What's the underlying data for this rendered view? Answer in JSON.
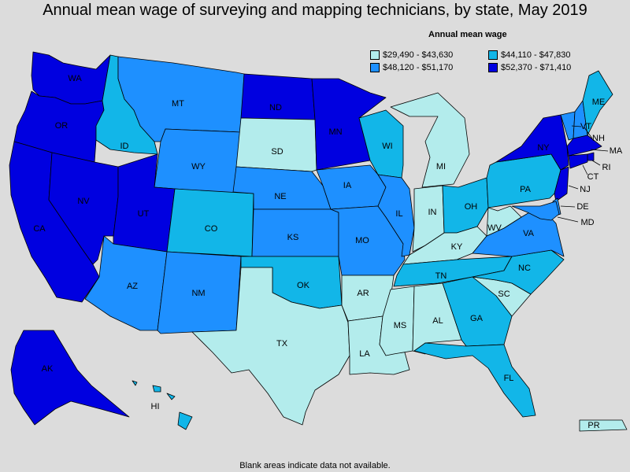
{
  "title": "Annual mean wage of surveying and mapping technicians, by state, May 2019",
  "legend": {
    "title": "Annual mean wage",
    "items": [
      {
        "label": "$29,490 - $43,630",
        "color": "#b3ecec"
      },
      {
        "label": "$44,110 - $47,830",
        "color": "#12b6e8"
      },
      {
        "label": "$48,120 - $51,170",
        "color": "#1e90ff"
      },
      {
        "label": "$52,370 - $71,410",
        "color": "#0000e0"
      }
    ]
  },
  "footnote": "Blank areas indicate data not available.",
  "states": [
    {
      "abbr": "WA",
      "bin": 3
    },
    {
      "abbr": "OR",
      "bin": 3
    },
    {
      "abbr": "CA",
      "bin": 3
    },
    {
      "abbr": "NV",
      "bin": 3
    },
    {
      "abbr": "ID",
      "bin": 1
    },
    {
      "abbr": "MT",
      "bin": 2
    },
    {
      "abbr": "WY",
      "bin": 2
    },
    {
      "abbr": "UT",
      "bin": 3
    },
    {
      "abbr": "AZ",
      "bin": 2
    },
    {
      "abbr": "CO",
      "bin": 1
    },
    {
      "abbr": "NM",
      "bin": 2
    },
    {
      "abbr": "ND",
      "bin": 3
    },
    {
      "abbr": "SD",
      "bin": 0
    },
    {
      "abbr": "NE",
      "bin": 2
    },
    {
      "abbr": "KS",
      "bin": 2
    },
    {
      "abbr": "OK",
      "bin": 1
    },
    {
      "abbr": "TX",
      "bin": 0
    },
    {
      "abbr": "MN",
      "bin": 3
    },
    {
      "abbr": "IA",
      "bin": 2
    },
    {
      "abbr": "MO",
      "bin": 2
    },
    {
      "abbr": "AR",
      "bin": 0
    },
    {
      "abbr": "LA",
      "bin": 0
    },
    {
      "abbr": "WI",
      "bin": 1
    },
    {
      "abbr": "IL",
      "bin": 2
    },
    {
      "abbr": "MI",
      "bin": 0
    },
    {
      "abbr": "IN",
      "bin": 0
    },
    {
      "abbr": "OH",
      "bin": 1
    },
    {
      "abbr": "KY",
      "bin": 0
    },
    {
      "abbr": "TN",
      "bin": 1
    },
    {
      "abbr": "MS",
      "bin": 0
    },
    {
      "abbr": "AL",
      "bin": 0
    },
    {
      "abbr": "GA",
      "bin": 1
    },
    {
      "abbr": "FL",
      "bin": 1
    },
    {
      "abbr": "SC",
      "bin": 0
    },
    {
      "abbr": "NC",
      "bin": 1
    },
    {
      "abbr": "VA",
      "bin": 2
    },
    {
      "abbr": "WV",
      "bin": 0
    },
    {
      "abbr": "PA",
      "bin": 1
    },
    {
      "abbr": "NY",
      "bin": 3
    },
    {
      "abbr": "VT",
      "bin": 2
    },
    {
      "abbr": "NH",
      "bin": 2
    },
    {
      "abbr": "ME",
      "bin": 1
    },
    {
      "abbr": "MA",
      "bin": 3
    },
    {
      "abbr": "RI",
      "bin": 3
    },
    {
      "abbr": "CT",
      "bin": 3
    },
    {
      "abbr": "NJ",
      "bin": 3
    },
    {
      "abbr": "DE",
      "bin": 2
    },
    {
      "abbr": "MD",
      "bin": 2
    },
    {
      "abbr": "AK",
      "bin": 3
    },
    {
      "abbr": "HI",
      "bin": 1
    },
    {
      "abbr": "PR",
      "bin": 0
    }
  ]
}
